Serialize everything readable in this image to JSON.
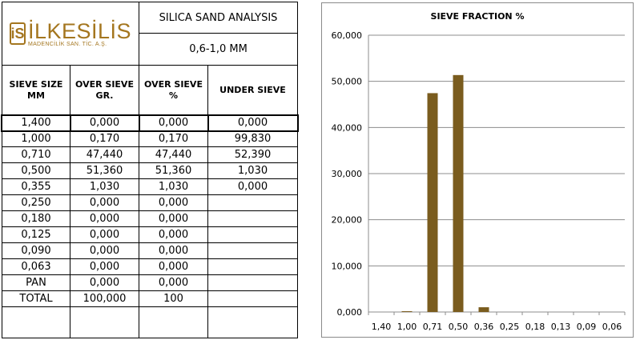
{
  "logo": {
    "mark": "iS",
    "name": "İLKESİLİS",
    "subtitle": "MADENCİLİK SAN. TİC. A.Ş."
  },
  "table": {
    "title": "SILICA SAND ANALYSIS",
    "subtitle": "0,6-1,0 MM",
    "headers": [
      "SIEVE SIZE MM",
      "OVER SIEVE GR.",
      "OVER SIEVE %",
      "UNDER SIEVE"
    ],
    "rows": [
      [
        "1,400",
        "0,000",
        "0,000",
        "0,000"
      ],
      [
        "1,000",
        "0,170",
        "0,170",
        "99,830"
      ],
      [
        "0,710",
        "47,440",
        "47,440",
        "52,390"
      ],
      [
        "0,500",
        "51,360",
        "51,360",
        "1,030"
      ],
      [
        "0,355",
        "1,030",
        "1,030",
        "0,000"
      ],
      [
        "0,250",
        "0,000",
        "0,000",
        ""
      ],
      [
        "0,180",
        "0,000",
        "0,000",
        ""
      ],
      [
        "0,125",
        "0,000",
        "0,000",
        ""
      ],
      [
        "0,090",
        "0,000",
        "0,000",
        ""
      ],
      [
        "0,063",
        "0,000",
        "0,000",
        ""
      ],
      [
        "PAN",
        "0,000",
        "0,000",
        ""
      ],
      [
        "TOTAL",
        "100,000",
        "100",
        ""
      ]
    ]
  },
  "chart_data": {
    "type": "bar",
    "title": "SIEVE FRACTION %",
    "categories": [
      "1,40",
      "1,00",
      "0,71",
      "0,50",
      "0,36",
      "0,25",
      "0,18",
      "0,13",
      "0,09",
      "0,06"
    ],
    "values": [
      0,
      0.17,
      47.44,
      51.36,
      1.03,
      0,
      0,
      0,
      0,
      0
    ],
    "ylim": [
      0,
      60
    ],
    "yticks": [
      "0,000",
      "10,000",
      "20,000",
      "30,000",
      "40,000",
      "50,000",
      "60,000"
    ],
    "bar_color": "#7a5c1e",
    "grid": true,
    "legend": "none"
  }
}
